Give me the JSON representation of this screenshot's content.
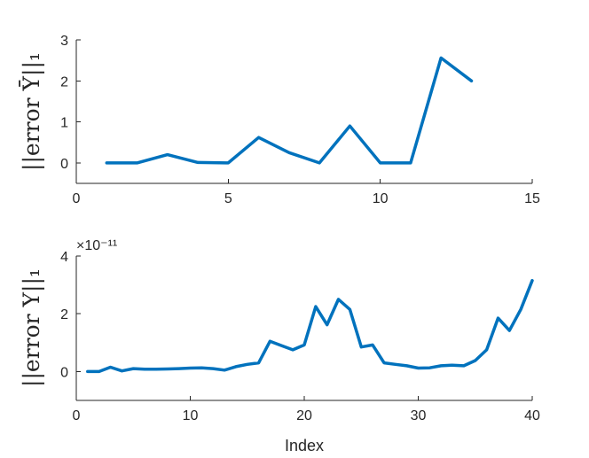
{
  "colors": {
    "series": "#0072BD",
    "axes": "#262626",
    "background": "#ffffff"
  },
  "chart_data": [
    {
      "type": "line",
      "ylabel": "||error Ȳ||₁",
      "xlabel": "",
      "xlim": [
        0,
        15
      ],
      "ylim": [
        -0.5,
        3
      ],
      "xticks": [
        0,
        5,
        10,
        15
      ],
      "yticks": [
        0,
        1,
        2,
        3
      ],
      "grid": false,
      "series": [
        {
          "x": [
            1,
            2,
            3,
            4,
            5,
            6,
            7,
            8,
            9,
            10,
            11,
            12,
            13
          ],
          "y": [
            0,
            0,
            0.2,
            0.01,
            0,
            0.62,
            0.25,
            0,
            0.9,
            0,
            0,
            2.56,
            2.0
          ]
        }
      ]
    },
    {
      "type": "line",
      "ylabel": "||error Y||₁",
      "xlabel": "Index",
      "exponent": "×10⁻¹¹",
      "xlim": [
        0,
        40
      ],
      "ylim": [
        -1,
        4
      ],
      "xticks": [
        0,
        10,
        20,
        30,
        40
      ],
      "yticks": [
        0,
        2,
        4
      ],
      "grid": false,
      "series": [
        {
          "x": [
            1,
            2,
            3,
            4,
            5,
            6,
            7,
            8,
            9,
            10,
            11,
            12,
            13,
            14,
            15,
            16,
            17,
            18,
            19,
            20,
            21,
            22,
            23,
            24,
            25,
            26,
            27,
            28,
            29,
            30,
            31,
            32,
            33,
            34,
            35,
            36,
            37,
            38,
            39,
            40
          ],
          "y": [
            0,
            0,
            0.15,
            0.02,
            0.1,
            0.08,
            0.08,
            0.09,
            0.1,
            0.12,
            0.13,
            0.1,
            0.05,
            0.17,
            0.25,
            0.3,
            1.05,
            0.9,
            0.75,
            0.92,
            2.25,
            1.62,
            2.5,
            2.15,
            0.85,
            0.92,
            0.3,
            0.25,
            0.2,
            0.12,
            0.13,
            0.2,
            0.22,
            0.2,
            0.38,
            0.75,
            1.85,
            1.42,
            2.15,
            3.15
          ]
        }
      ]
    }
  ]
}
